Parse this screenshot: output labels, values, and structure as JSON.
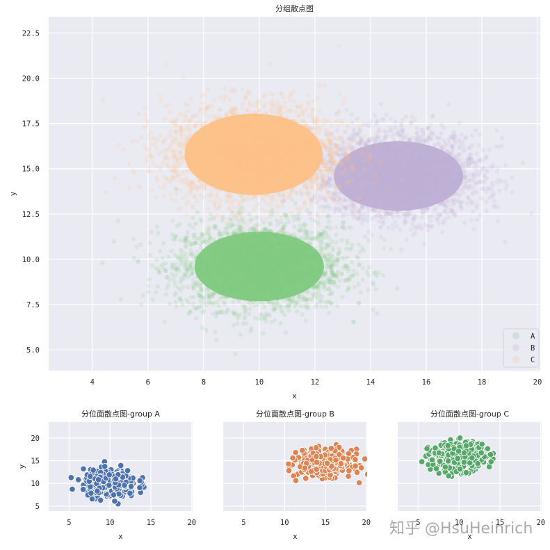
{
  "chart_data": [
    {
      "type": "scatter",
      "title": "分组散点图",
      "xlabel": "x",
      "ylabel": "y",
      "xlim": [
        2.43,
        20.1
      ],
      "ylim": [
        3.85,
        23.4
      ],
      "xticks": [
        4,
        6,
        8,
        10,
        12,
        14,
        16,
        18,
        20
      ],
      "yticks": [
        5.0,
        7.5,
        10.0,
        12.5,
        15.0,
        17.5,
        20.0,
        22.5
      ],
      "grid": true,
      "legend_position": "lower right",
      "legend": [
        "A",
        "B",
        "C"
      ],
      "series": [
        {
          "name": "A",
          "color": "#7fc97f",
          "center": [
            10.0,
            9.6
          ],
          "sd": [
            1.5,
            1.2
          ],
          "n": 10000,
          "alpha": 0.12
        },
        {
          "name": "B",
          "color": "#beaed4",
          "center": [
            15.0,
            14.6
          ],
          "sd": [
            1.5,
            1.2
          ],
          "n": 10000,
          "alpha": 0.12
        },
        {
          "name": "C",
          "color": "#fdc086",
          "center": [
            9.8,
            15.8
          ],
          "sd": [
            1.6,
            1.4
          ],
          "n": 10000,
          "alpha": 0.12
        }
      ]
    },
    {
      "type": "scatter",
      "title": "分位面散点图-group A",
      "xlabel": "x",
      "ylabel": "y",
      "xlim": [
        2.5,
        20.1
      ],
      "ylim": [
        3.9,
        23.5
      ],
      "xticks": [
        5,
        10,
        15,
        20
      ],
      "yticks": [
        5,
        10,
        15,
        20
      ],
      "series": [
        {
          "name": "A",
          "color": "#4c72b0",
          "center": [
            10.0,
            10.0
          ],
          "sd": [
            1.9,
            1.7
          ],
          "n": 400
        }
      ]
    },
    {
      "type": "scatter",
      "title": "分位面散点图-group B",
      "xlabel": "x",
      "ylabel": "",
      "xlim": [
        2.5,
        20.1
      ],
      "ylim": [
        3.9,
        23.5
      ],
      "xticks": [
        5,
        10,
        15,
        20
      ],
      "yticks": [
        5,
        10,
        15,
        20
      ],
      "series": [
        {
          "name": "B",
          "color": "#dd8452",
          "center": [
            15.0,
            14.5
          ],
          "sd": [
            1.9,
            1.7
          ],
          "n": 400
        }
      ]
    },
    {
      "type": "scatter",
      "title": "分位面散点图-group C",
      "xlabel": "x",
      "ylabel": "",
      "xlim": [
        2.5,
        20.1
      ],
      "ylim": [
        3.9,
        23.5
      ],
      "xticks": [
        5,
        10,
        15,
        20
      ],
      "yticks": [
        5,
        10,
        15,
        20
      ],
      "series": [
        {
          "name": "C",
          "color": "#55a868",
          "center": [
            9.8,
            15.8
          ],
          "sd": [
            2.0,
            1.8
          ],
          "n": 400
        }
      ]
    }
  ],
  "watermark": "知乎 @HsuHeinrich"
}
